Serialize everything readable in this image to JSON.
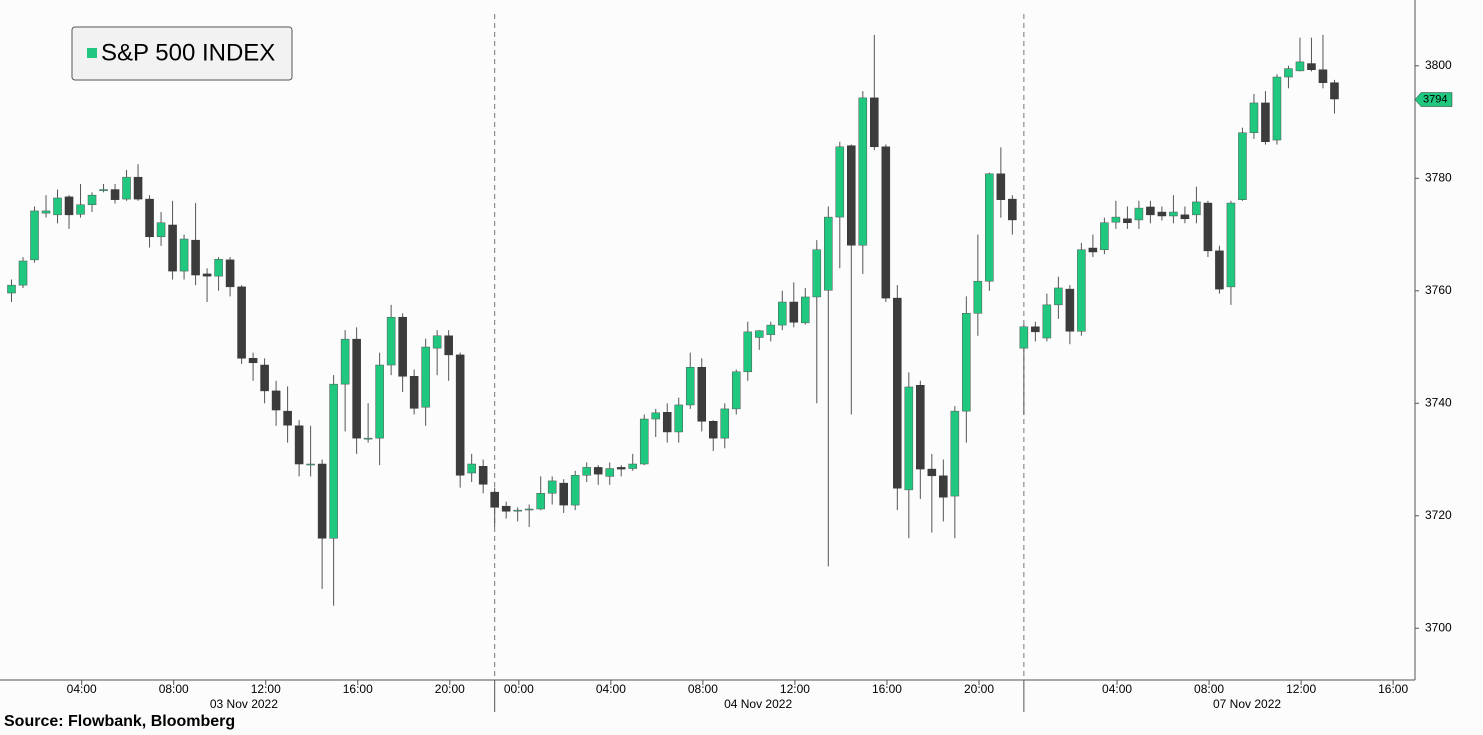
{
  "chart_data": {
    "type": "candlestick",
    "title": "S&P 500 INDEX",
    "source": "Source: Flowbank, Bloomberg",
    "up_color": "#20c77f",
    "down_color": "#3c3c3c",
    "categories": [
      null,
      null,
      null,
      null,
      null,
      null,
      null,
      null,
      null,
      null,
      null,
      null,
      null,
      null,
      null,
      null,
      null,
      null,
      null,
      null,
      null,
      null,
      null,
      null,
      null,
      null,
      null,
      null,
      null,
      null,
      null,
      null,
      null,
      null,
      null,
      null,
      null,
      null,
      null,
      null,
      null,
      null,
      null,
      null,
      null,
      null,
      null,
      null,
      null,
      null,
      null,
      null,
      null,
      null,
      null,
      null,
      null,
      null,
      null,
      null,
      null,
      null,
      null,
      null,
      null,
      null,
      null,
      null,
      null,
      null,
      null,
      null,
      null,
      null,
      null,
      null,
      null,
      null,
      null,
      null,
      null,
      null,
      null,
      null,
      null,
      null,
      null,
      null,
      null,
      null,
      null,
      null,
      null,
      null,
      null,
      null,
      null,
      null,
      null,
      null,
      null,
      null,
      null,
      null,
      null,
      null,
      null,
      null,
      null,
      null,
      null,
      null,
      null,
      null,
      null,
      null
    ],
    "open": [
      3759.6,
      3761,
      3765.5,
      3773.8,
      3773.5,
      3776.7,
      3773.6,
      3775.3,
      3777.8,
      3778,
      3776.3,
      3780.2,
      3776.3,
      3769.6,
      3771.7,
      3763.5,
      3769,
      3763,
      3762.6,
      3765.5,
      3760.7,
      3748,
      3746.8,
      3742.2,
      3738.6,
      3736,
      3729.2,
      3729.2,
      3716,
      3743.4,
      3751.4,
      3733.8,
      3733.8,
      3746.8,
      3755.3,
      3744.8,
      3739.3,
      3749.8,
      3752,
      3748.6,
      3727.6,
      3728.8,
      3724.2,
      3721.7,
      3721,
      3721.2,
      3721.2,
      3724,
      3725.8,
      3721.9,
      3727.2,
      3728.6,
      3727,
      3728.6,
      3728.4,
      3729.2,
      3737.2,
      3738.4,
      3734.9,
      3739.7,
      3746.4,
      3736.8,
      3733.8,
      3739,
      3745.6,
      3751.7,
      3752.2,
      3753.9,
      3758,
      3754.3,
      3758.9,
      3760.1,
      3773.1,
      3785.8,
      3768.1,
      3794.3,
      3785.6,
      3758.7,
      3724.6,
      3743.2,
      3728.3,
      3727.1,
      3723.5,
      3738.6,
      3756,
      3761.7,
      3780.8,
      3776.3,
      3749.8,
      3753.6,
      3751.6,
      3757.5,
      3760.3,
      3752.8,
      3767.6,
      3767.3,
      3772.2,
      3772.8,
      3772.6,
      3774.9,
      3774,
      3773.3,
      3773.5,
      3773.5,
      3775.6,
      3767.1,
      3760.7,
      3776.2,
      3788.1,
      3793.4,
      3786.8,
      3798,
      3799.1,
      3800.4,
      3799.3,
      3797
    ],
    "high": [
      3762,
      3766,
      3775,
      3777,
      3778,
      3777,
      3779,
      3777.5,
      3779,
      3779,
      3781.5,
      3782.5,
      3777,
      3774,
      3776,
      3770,
      3775.6,
      3764,
      3766,
      3766,
      3761,
      3749,
      3748,
      3744,
      3743,
      3737,
      3736,
      3730,
      3745,
      3753,
      3753.5,
      3740,
      3749,
      3757.5,
      3756,
      3746,
      3751.5,
      3753,
      3753,
      3749,
      3731,
      3730,
      3725,
      3722.5,
      3721.5,
      3722,
      3727,
      3727,
      3726.5,
      3728,
      3729.5,
      3729,
      3729.5,
      3729,
      3731,
      3738,
      3739,
      3740,
      3741,
      3749,
      3748,
      3737,
      3740,
      3746,
      3754.5,
      3753,
      3754.5,
      3760,
      3761.5,
      3760.5,
      3769,
      3775,
      3786.5,
      3786,
      3795.5,
      3805.5,
      3786,
      3761,
      3745.5,
      3744,
      3731,
      3730,
      3739.5,
      3759,
      3770,
      3781,
      3785.5,
      3777,
      3754,
      3754.5,
      3759.5,
      3762.5,
      3761,
      3768.5,
      3770,
      3773,
      3776,
      3775,
      3776,
      3776,
      3775,
      3777,
      3775,
      3778.5,
      3776,
      3768,
      3776,
      3789,
      3795,
      3795.5,
      3798.5,
      3800,
      3805,
      3805,
      3805.5,
      3797.5
    ],
    "low": [
      3758,
      3760.5,
      3765,
      3773,
      3772,
      3771,
      3773,
      3774,
      3777.5,
      3775.5,
      3776,
      3776,
      3767.7,
      3768,
      3762,
      3762,
      3761,
      3758,
      3760,
      3759,
      3747,
      3744,
      3740,
      3736,
      3733,
      3727,
      3727,
      3707,
      3704,
      3735,
      3731,
      3733,
      3729,
      3745,
      3742,
      3738,
      3736,
      3745,
      3744,
      3725,
      3726,
      3724,
      3718,
      3719.5,
      3719,
      3718,
      3721,
      3722,
      3720.5,
      3721,
      3726,
      3725.5,
      3725.5,
      3727,
      3728,
      3729,
      3734,
      3733,
      3733,
      3739,
      3735,
      3731.5,
      3732,
      3738,
      3744,
      3749.5,
      3751,
      3753,
      3753.5,
      3754,
      3740,
      3711,
      3764,
      3738,
      3763,
      3785,
      3758,
      3721,
      3716,
      3723,
      3717,
      3719,
      3716,
      3733,
      3752,
      3760,
      3773,
      3770,
      3738,
      3751,
      3751,
      3755,
      3750.5,
      3752,
      3766,
      3766.5,
      3771,
      3771,
      3771,
      3772,
      3772.5,
      3772,
      3772,
      3772,
      3766,
      3759.5,
      3757.5,
      3776,
      3787,
      3786,
      3786,
      3796,
      3799,
      3799,
      3796,
      3791.5
    ],
    "close": [
      3761,
      3765.3,
      3774.2,
      3774.2,
      3776.5,
      3773.5,
      3775.3,
      3777,
      3778,
      3776.2,
      3780.2,
      3776.3,
      3769.6,
      3772.1,
      3763.5,
      3769.2,
      3762.8,
      3762.6,
      3765.6,
      3760.7,
      3748,
      3747.2,
      3742.2,
      3738.8,
      3736.1,
      3729.2,
      3729.2,
      3716,
      3743.4,
      3751.4,
      3733.8,
      3733.8,
      3746.8,
      3755.3,
      3744.8,
      3739.1,
      3750,
      3752,
      3748.6,
      3727.2,
      3729.2,
      3725.6,
      3721.5,
      3720.8,
      3721,
      3721.2,
      3724,
      3726.2,
      3721.9,
      3727.2,
      3728.6,
      3727.4,
      3728.4,
      3728.3,
      3729.2,
      3737.2,
      3738.3,
      3734.9,
      3739.7,
      3746.4,
      3736.8,
      3733.8,
      3739,
      3745.6,
      3752.7,
      3752.9,
      3753.9,
      3758,
      3754.4,
      3758.9,
      3767.3,
      3773.1,
      3785.6,
      3768.1,
      3794.3,
      3785.6,
      3758.7,
      3724.9,
      3742.9,
      3728.3,
      3727.1,
      3723.3,
      3738.6,
      3756,
      3761.7,
      3780.8,
      3776.2,
      3772.6,
      3753.6,
      3752.7,
      3757.5,
      3760.5,
      3752.8,
      3767.3,
      3766.9,
      3772.1,
      3773.1,
      3772.1,
      3774.7,
      3773.5,
      3773.3,
      3774,
      3772.8,
      3775.8,
      3767.1,
      3760.3,
      3775.6,
      3788.1,
      3793.4,
      3786.5,
      3798,
      3799.5,
      3800.7,
      3799.3,
      3797,
      3794.1
    ],
    "last_value": 3794,
    "xlim": [
      -1,
      122
    ],
    "ylim": [
      3690.8,
      3811.7
    ],
    "yticks": [
      3700,
      3720,
      3740,
      3760,
      3780,
      3800
    ],
    "xticks": [
      {
        "value": 6.1,
        "label": "04:00"
      },
      {
        "value": 14.1,
        "label": "08:00"
      },
      {
        "value": 22.1,
        "label": "12:00"
      },
      {
        "value": 30.1,
        "label": "16:00"
      },
      {
        "value": 38.1,
        "label": "20:00"
      },
      {
        "value": 44.1,
        "label": "00:00"
      },
      {
        "value": 52.1,
        "label": "04:00"
      },
      {
        "value": 60.1,
        "label": "08:00"
      },
      {
        "value": 68.1,
        "label": "12:00"
      },
      {
        "value": 76.1,
        "label": "16:00"
      },
      {
        "value": 84.1,
        "label": "20:00"
      },
      {
        "value": 96.1,
        "label": "04:00"
      },
      {
        "value": 104.1,
        "label": "08:00"
      },
      {
        "value": 112.1,
        "label": "12:00"
      },
      {
        "value": 120.1,
        "label": "16:00"
      }
    ],
    "date_labels": [
      {
        "value": 20.2,
        "label": "03 Nov 2022"
      },
      {
        "value": 64.9,
        "label": "04 Nov 2022"
      },
      {
        "value": 107.4,
        "label": "07 Nov 2022"
      }
    ],
    "session_breaks": [
      42,
      88
    ]
  }
}
